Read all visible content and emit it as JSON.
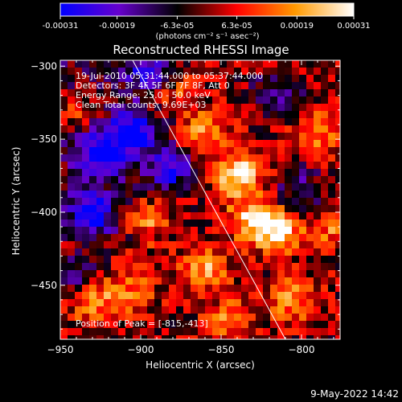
{
  "colorbar": {
    "ticks": [
      "-0.00031",
      "-0.00019",
      "-6.3e-05",
      "6.3e-05",
      "0.00019",
      "0.00031"
    ],
    "tick_values": [
      -0.00031,
      -0.00019,
      -6.3e-05,
      6.3e-05,
      0.00019,
      0.00031
    ],
    "range": [
      -0.00031,
      0.00031
    ],
    "unit_label": "(photons cm⁻² s⁻¹ asec⁻²)",
    "colors": [
      "#0000ff",
      "#6600cc",
      "#000000",
      "#ff0000",
      "#ff9900",
      "#ffffff"
    ]
  },
  "chart_data": {
    "type": "heatmap",
    "title": "Reconstructed RHESSI Image",
    "xlabel": "Heliocentric X (arcsec)",
    "ylabel": "Heliocentric Y (arcsec)",
    "xlim": [
      -950,
      -776
    ],
    "ylim": [
      -487,
      -296
    ],
    "xticks": [
      -950,
      -900,
      -850,
      -800
    ],
    "yticks": [
      -300,
      -350,
      -400,
      -450
    ],
    "annotations": [
      "19-Jul-2010 05:31:44.000 to 05:37:44.000",
      "Detectors: 3F 4F 5F 6F 7F 8F, Att 0",
      "Energy Range: 25.0 - 50.0 keV",
      "Clean    Total counts: 9.69E+03"
    ],
    "peak_label": "Position of Peak = [-815,-413]",
    "peak": [
      -815,
      -413
    ],
    "limb_line": [
      [
        -905,
        -296
      ],
      [
        -810,
        -487
      ]
    ],
    "color_range": [
      -0.00031,
      0.00031
    ],
    "hot_spots": [
      {
        "x": -840,
        "y": -375,
        "v": 0.00031
      },
      {
        "x": -815,
        "y": -413,
        "v": 0.00031
      },
      {
        "x": -895,
        "y": -405,
        "v": 0.00024
      },
      {
        "x": -833,
        "y": -405,
        "v": 0.00022
      },
      {
        "x": -790,
        "y": -345,
        "v": 0.00018
      },
      {
        "x": -860,
        "y": -345,
        "v": 0.00018
      },
      {
        "x": -930,
        "y": -460,
        "v": 0.00022
      },
      {
        "x": -860,
        "y": -440,
        "v": 0.0002
      },
      {
        "x": -805,
        "y": -460,
        "v": 0.00018
      },
      {
        "x": -880,
        "y": -320,
        "v": 0.00016
      },
      {
        "x": -780,
        "y": -410,
        "v": 0.00016
      },
      {
        "x": -845,
        "y": -475,
        "v": 0.00016
      },
      {
        "x": -905,
        "y": -455,
        "v": 0.00015
      },
      {
        "x": -940,
        "y": -330,
        "v": 0.00012
      }
    ],
    "cold_spots": [
      {
        "x": -925,
        "y": -360,
        "v": -0.00031
      },
      {
        "x": -905,
        "y": -345,
        "v": -0.00031
      },
      {
        "x": -930,
        "y": -400,
        "v": -0.00025
      },
      {
        "x": -880,
        "y": -370,
        "v": -0.00022
      },
      {
        "x": -895,
        "y": -305,
        "v": -0.0002
      },
      {
        "x": -815,
        "y": -320,
        "v": -0.00018
      },
      {
        "x": -800,
        "y": -385,
        "v": -0.00016
      },
      {
        "x": -940,
        "y": -445,
        "v": -0.00016
      }
    ]
  },
  "timestamp": "9-May-2022 14:42"
}
